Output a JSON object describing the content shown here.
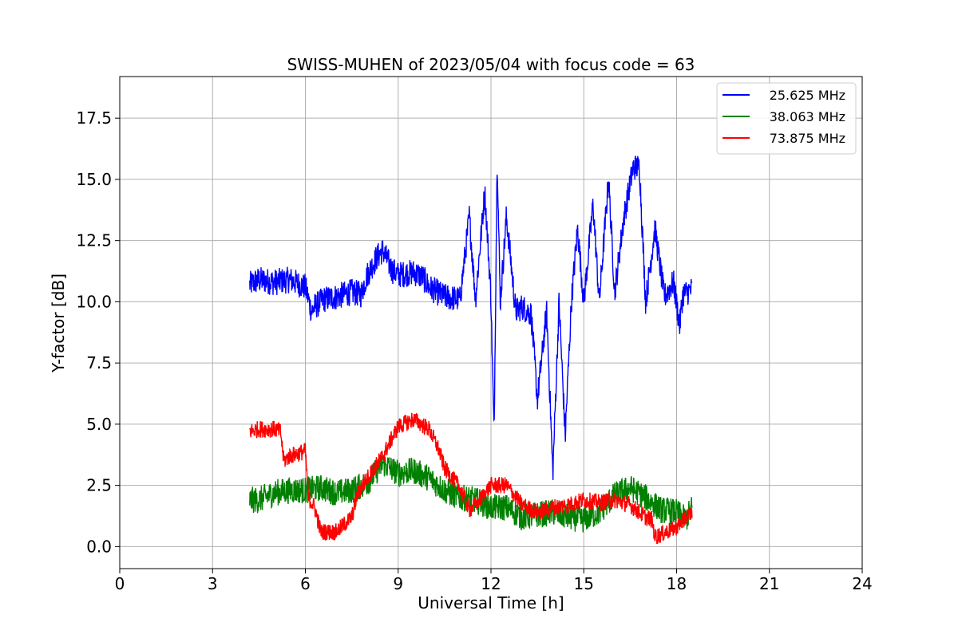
{
  "chart_data": {
    "type": "line",
    "title": "SWISS-MUHEN of 2023/05/04 with focus code = 63",
    "xlabel": "Universal Time [h]",
    "ylabel": "Y-factor [dB]",
    "xlim": [
      0,
      24
    ],
    "ylim": [
      -0.9,
      19.2
    ],
    "xticks": [
      0,
      3,
      6,
      9,
      12,
      15,
      18,
      21,
      24
    ],
    "xtick_labels": [
      "0",
      "3",
      "6",
      "9",
      "12",
      "15",
      "18",
      "21",
      "24"
    ],
    "yticks": [
      0,
      2.5,
      5,
      7.5,
      10,
      12.5,
      15,
      17.5
    ],
    "ytick_labels": [
      "0.0",
      "2.5",
      "5.0",
      "7.5",
      "10.0",
      "12.5",
      "15.0",
      "17.5"
    ],
    "grid": true,
    "legend_position": "top-right",
    "series": [
      {
        "name": "25.625 MHz",
        "color": "#0000ff",
        "x": [
          4.2,
          4.5,
          5.0,
          5.5,
          6.0,
          6.2,
          6.3,
          6.6,
          7.0,
          7.5,
          7.8,
          8.0,
          8.3,
          8.5,
          8.8,
          9.0,
          9.5,
          9.8,
          10.0,
          10.5,
          11.0,
          11.3,
          11.5,
          11.8,
          12.0,
          12.1,
          12.2,
          12.3,
          12.5,
          12.8,
          13.0,
          13.3,
          13.5,
          13.8,
          14.0,
          14.2,
          14.4,
          14.6,
          14.8,
          15.0,
          15.3,
          15.5,
          15.8,
          16.0,
          16.3,
          16.6,
          16.8,
          17.0,
          17.3,
          17.6,
          17.9,
          18.1,
          18.2,
          18.5
        ],
        "y": [
          10.7,
          10.9,
          10.8,
          10.9,
          10.6,
          9.6,
          9.8,
          10.1,
          10.2,
          10.4,
          10.3,
          11.1,
          11.8,
          12.1,
          11.3,
          11.1,
          11.2,
          11.0,
          10.6,
          10.2,
          10.1,
          13.5,
          10.1,
          14.5,
          10.2,
          4.5,
          16.0,
          10.0,
          13.5,
          9.6,
          9.8,
          9.5,
          6.0,
          9.6,
          3.0,
          10.0,
          4.5,
          10.0,
          13.0,
          10.0,
          14.0,
          10.0,
          15.0,
          10.4,
          13.5,
          15.5,
          15.5,
          10.0,
          13.0,
          10.2,
          10.8,
          9.0,
          10.3,
          10.5
        ]
      },
      {
        "name": "38.063 MHz",
        "color": "#008000",
        "x": [
          4.2,
          4.5,
          5.0,
          5.5,
          6.0,
          6.5,
          7.0,
          7.5,
          8.0,
          8.5,
          9.0,
          9.5,
          10.0,
          10.5,
          11.0,
          11.5,
          12.0,
          12.5,
          13.0,
          13.5,
          14.0,
          14.5,
          15.0,
          15.5,
          16.0,
          16.5,
          17.0,
          17.5,
          18.0,
          18.3,
          18.5
        ],
        "y": [
          1.9,
          1.9,
          2.2,
          2.3,
          2.3,
          2.4,
          2.2,
          2.3,
          2.6,
          3.4,
          3.0,
          3.1,
          2.8,
          2.3,
          2.0,
          1.9,
          1.6,
          1.6,
          1.2,
          1.3,
          1.4,
          1.2,
          1.1,
          1.4,
          2.1,
          2.4,
          2.0,
          1.5,
          1.4,
          1.1,
          1.6
        ]
      },
      {
        "name": "73.875 MHz",
        "color": "#ff0000",
        "x": [
          4.2,
          4.5,
          5.0,
          5.2,
          5.3,
          5.5,
          6.0,
          6.1,
          6.3,
          6.5,
          7.0,
          7.5,
          7.7,
          8.0,
          8.5,
          9.0,
          9.5,
          10.0,
          10.3,
          10.5,
          11.0,
          11.3,
          11.5,
          12.0,
          12.5,
          13.0,
          13.5,
          14.0,
          14.5,
          15.0,
          15.5,
          16.0,
          16.5,
          17.0,
          17.2,
          17.3,
          17.5,
          18.0,
          18.5
        ],
        "y": [
          4.7,
          4.8,
          4.8,
          4.7,
          3.5,
          3.7,
          3.9,
          2.0,
          1.6,
          0.6,
          0.6,
          1.2,
          2.2,
          2.8,
          3.7,
          4.9,
          5.2,
          4.8,
          4.0,
          3.2,
          2.4,
          1.5,
          1.7,
          2.5,
          2.5,
          1.7,
          1.4,
          1.6,
          1.7,
          1.9,
          1.8,
          1.9,
          1.7,
          1.2,
          1.1,
          0.4,
          0.5,
          0.8,
          1.4
        ]
      }
    ]
  }
}
